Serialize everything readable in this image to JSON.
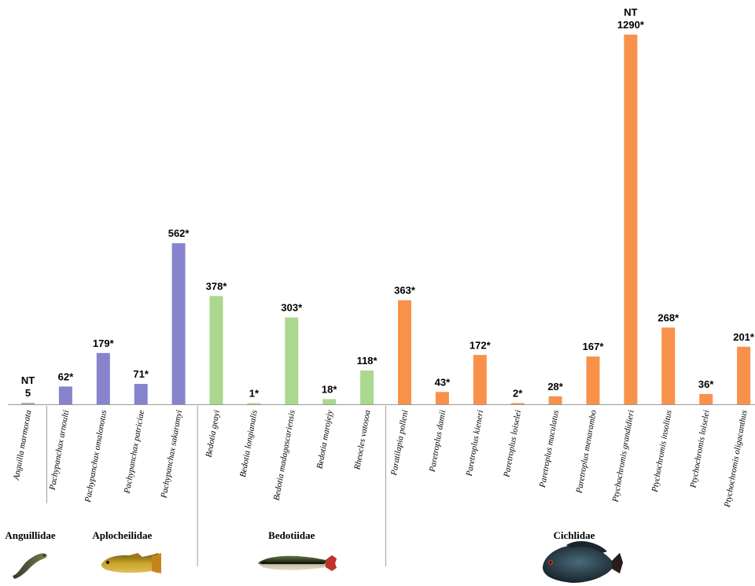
{
  "chart_data": {
    "type": "bar",
    "ylim": [
      0,
      1290
    ],
    "categories": [
      "Anguilla marmorata",
      "Pachypanchax arnoulti",
      "Pachypanchax omalonotus",
      "Pachypanchax patriciae",
      "Pachypanchax sakaramyi",
      "Bedotia geayi",
      "Bedotia longianalis",
      "Bedotia madagascariensis",
      "Bedotia marojejy",
      "Rheocles vatosoa",
      "Paratilapia polleni",
      "Paretroplus damii",
      "Paretroplus kieneri",
      "Paretroplus loiselei",
      "Paretroplus maculatus",
      "Paretroplus menarambo",
      "Ptychochromis grandidieri",
      "Ptychochromis insolitus",
      "Ptychochromis loiselei",
      "Ptychochromis oligacanthus"
    ],
    "values": [
      5,
      62,
      179,
      71,
      562,
      378,
      1,
      303,
      18,
      118,
      363,
      43,
      172,
      2,
      28,
      167,
      1290,
      268,
      36,
      201
    ],
    "value_labels": [
      "5",
      "62*",
      "179*",
      "71*",
      "562*",
      "378*",
      "1*",
      "303*",
      "18*",
      "118*",
      "363*",
      "43*",
      "172*",
      "2*",
      "28*",
      "167*",
      "1290*",
      "268*",
      "36*",
      "201*"
    ],
    "status_labels": [
      "NT",
      "",
      "",
      "",
      "",
      "",
      "",
      "",
      "",
      "",
      "",
      "",
      "",
      "",
      "",
      "",
      "NT",
      "",
      "",
      ""
    ],
    "families": [
      {
        "name": "Anguillidae",
        "start": 0,
        "end": 0,
        "color": "#a6a6a6",
        "icon": "eel-icon"
      },
      {
        "name": "Aplocheilidae",
        "start": 1,
        "end": 4,
        "color": "#8684cc",
        "icon": "killifish-icon"
      },
      {
        "name": "Bedotiidae",
        "start": 5,
        "end": 9,
        "color": "#a9d88e",
        "icon": "rainbowfish-icon"
      },
      {
        "name": "Cichlidae",
        "start": 10,
        "end": 19,
        "color": "#f8924a",
        "icon": "cichlid-icon"
      }
    ],
    "grid": false,
    "legend": "none"
  }
}
